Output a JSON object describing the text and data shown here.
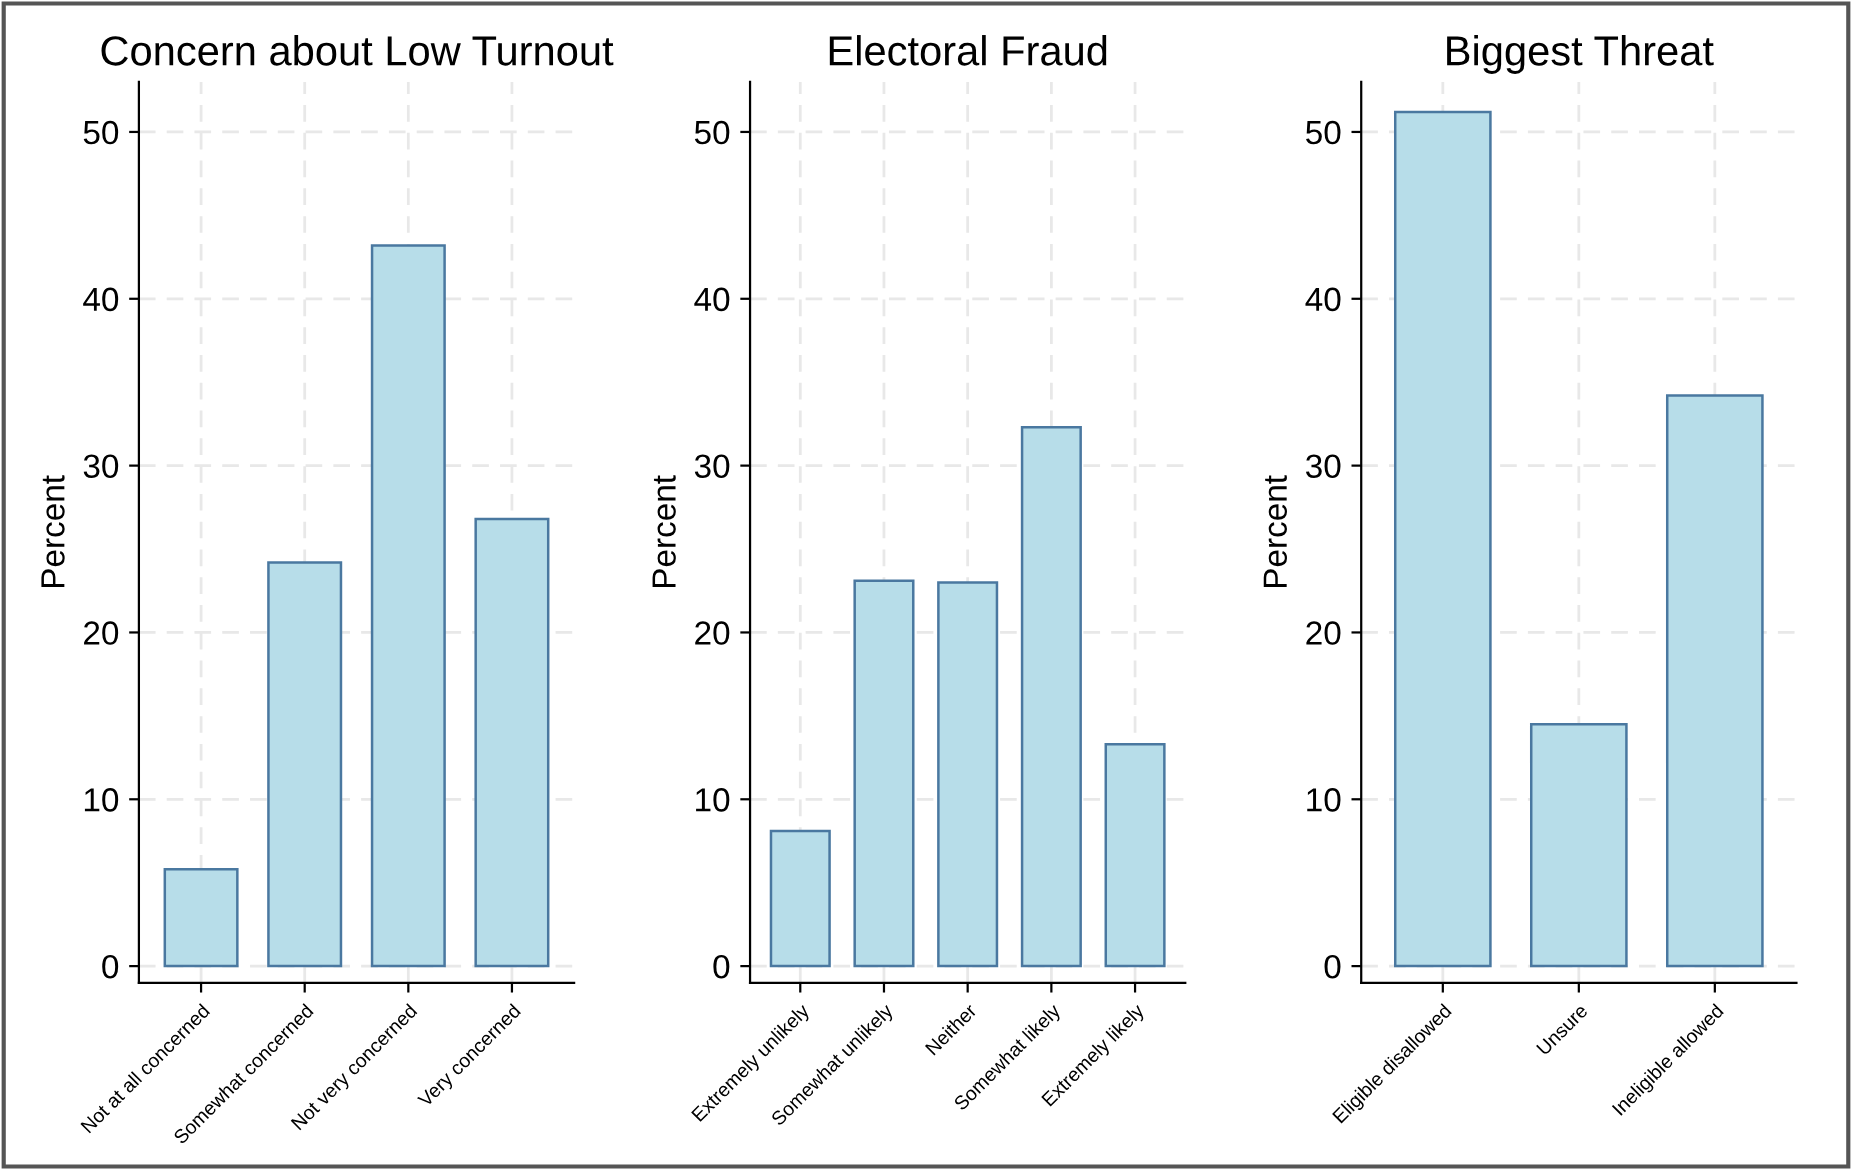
{
  "chart_data": [
    {
      "type": "bar",
      "title": "Concern about Low Turnout",
      "ylabel": "Percent",
      "categories": [
        "Not at all concerned",
        "Somewhat concerned",
        "Not very concerned",
        "Very concerned"
      ],
      "values": [
        5.8,
        24.2,
        43.2,
        26.8
      ],
      "color": "#b7dde9",
      "ylim": [
        -1,
        53
      ],
      "yticks": [
        0,
        10,
        20,
        30,
        40,
        50
      ],
      "grid": true
    },
    {
      "type": "bar",
      "title": "Electoral Fraud",
      "ylabel": "Percent",
      "categories": [
        "Extremely unlikely",
        "Somewhat unlikely",
        "Neither",
        "Somewhat likely",
        "Extremely likely"
      ],
      "values": [
        8.1,
        23.1,
        23.0,
        32.3,
        13.3
      ],
      "color": "#b7dde9",
      "ylim": [
        -1,
        53
      ],
      "yticks": [
        0,
        10,
        20,
        30,
        40,
        50
      ],
      "grid": true
    },
    {
      "type": "bar",
      "title": "Biggest Threat",
      "ylabel": "Percent",
      "categories": [
        "Eligible disallowed",
        "Unsure",
        "Ineligible allowed"
      ],
      "values": [
        51.2,
        14.5,
        34.2
      ],
      "color": "#b7dde9",
      "ylim": [
        -1,
        53
      ],
      "yticks": [
        0,
        10,
        20,
        30,
        40,
        50
      ],
      "grid": true
    }
  ]
}
